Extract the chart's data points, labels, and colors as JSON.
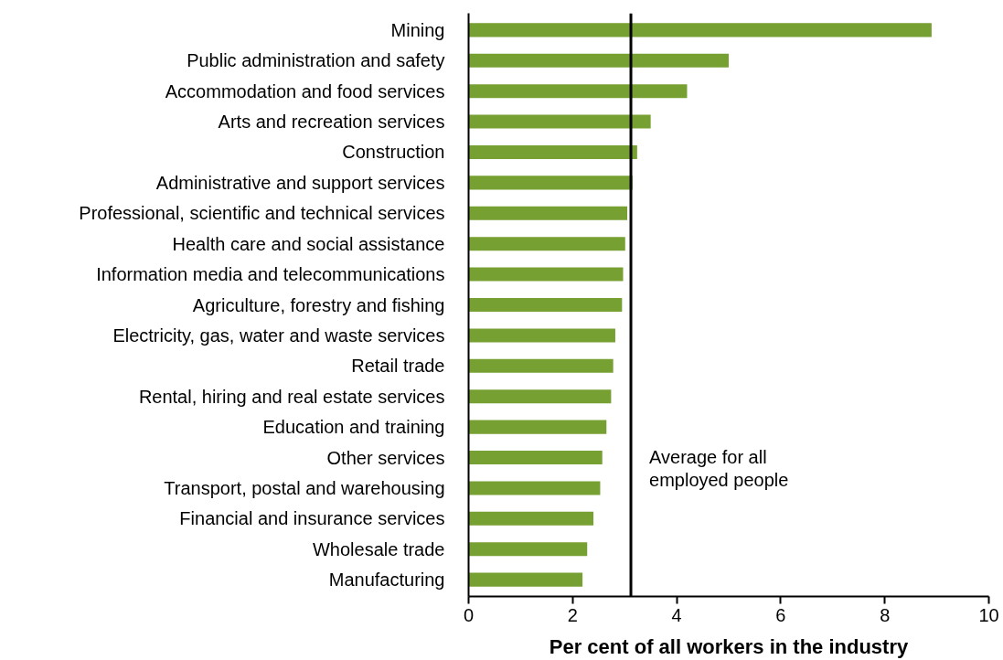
{
  "chart_data": {
    "type": "bar",
    "orientation": "horizontal",
    "xlabel": "Per cent of all workers in the industry",
    "categories": [
      "Mining",
      "Public administration and safety",
      "Accommodation and food services",
      "Arts and recreation services",
      "Construction",
      "Administrative and support services",
      "Professional, scientific and technical services",
      "Health care and social assistance",
      "Information media and telecommunications",
      "Agriculture, forestry and fishing",
      "Electricity, gas, water and waste services",
      "Retail trade",
      "Rental, hiring and real estate services",
      "Education and training",
      "Other services",
      "Transport, postal and warehousing",
      "Financial and insurance services",
      "Wholesale trade",
      "Manufacturing"
    ],
    "values": [
      8.9,
      5.0,
      4.2,
      3.5,
      3.24,
      3.15,
      3.05,
      3.01,
      2.97,
      2.95,
      2.82,
      2.78,
      2.74,
      2.65,
      2.57,
      2.53,
      2.4,
      2.28,
      2.19
    ],
    "color": "#76a132",
    "xlim": [
      0,
      10
    ],
    "xticks": [
      0,
      2,
      4,
      6,
      8,
      10
    ],
    "grid": false,
    "ref_lines": [
      {
        "axis": "x",
        "value": 3.12,
        "label": "Average for all employed people",
        "color": "#000000"
      }
    ]
  }
}
